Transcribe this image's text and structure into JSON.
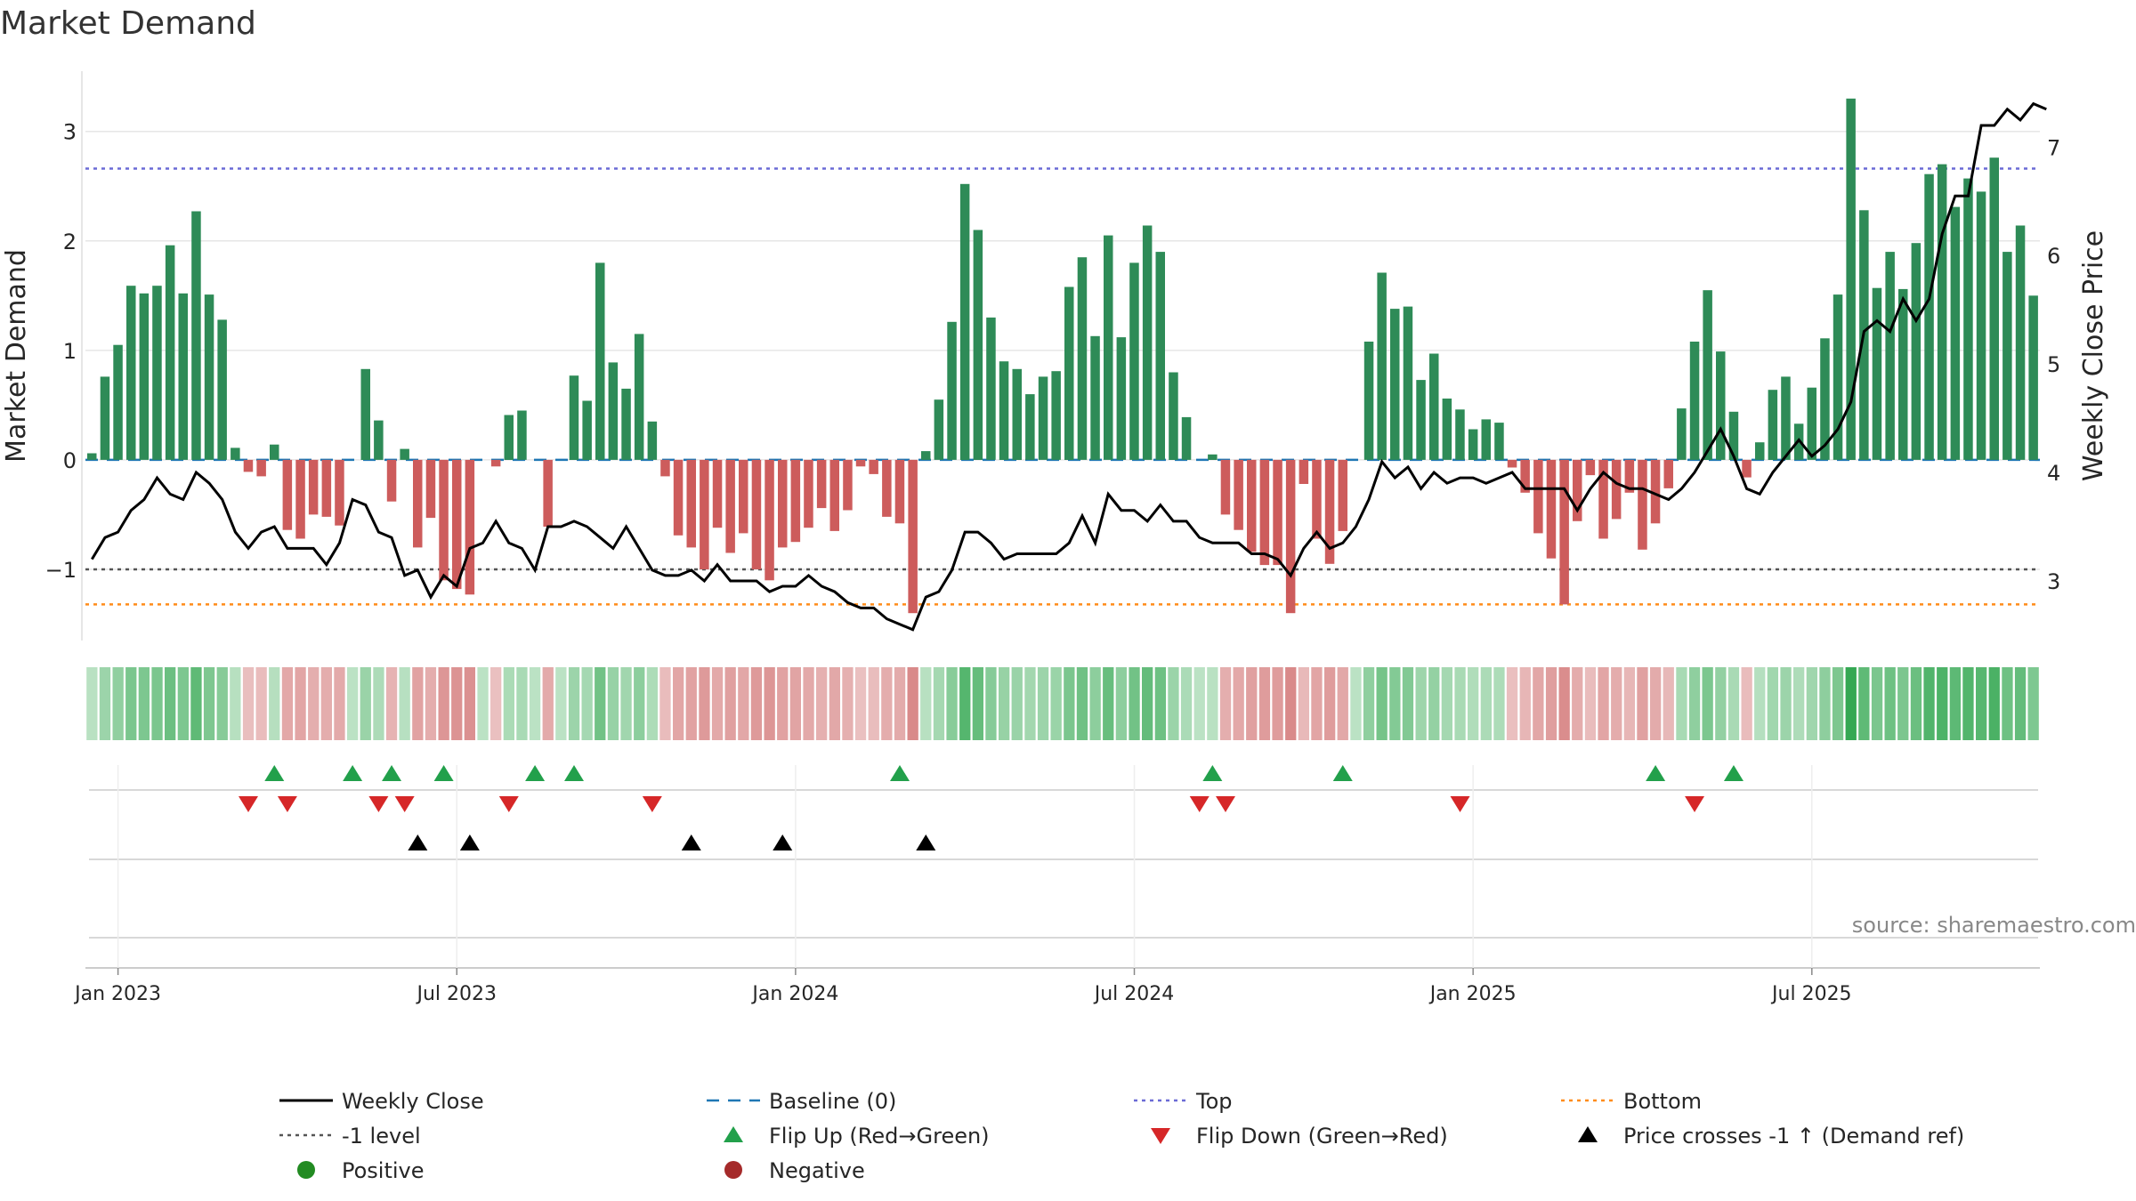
{
  "chart_data": {
    "type": "bar",
    "title": "Market Demand",
    "ylabel_left": "Market Demand",
    "ylabel_right": "Weekly Close Price",
    "source": "source: sharemaestro.com",
    "x_tick_labels": [
      "Jan 2023",
      "Jul 2023",
      "Jan 2024",
      "Jul 2024",
      "Jan 2025",
      "Jul 2025"
    ],
    "x_tick_weeks": [
      0,
      26,
      52,
      78,
      104,
      130
    ],
    "ylim_left": [
      -1.65,
      3.55
    ],
    "yticks_left": [
      {
        "v": -1,
        "label": "−1"
      },
      {
        "v": 0,
        "label": "0"
      },
      {
        "v": 1,
        "label": "1"
      },
      {
        "v": 2,
        "label": "2"
      },
      {
        "v": 3,
        "label": "3"
      }
    ],
    "ylim_right": [
      2.45,
      7.7
    ],
    "yticks_right": [
      {
        "v": 3,
        "label": "3"
      },
      {
        "v": 4,
        "label": "4"
      },
      {
        "v": 5,
        "label": "5"
      },
      {
        "v": 6,
        "label": "6"
      },
      {
        "v": 7,
        "label": "7"
      }
    ],
    "reference_lines": {
      "top": 2.66,
      "bottom": -1.32,
      "minus_one": -1,
      "baseline": 0
    },
    "first_week_offset": -2,
    "demand": [
      0.06,
      0.76,
      1.05,
      1.59,
      1.52,
      1.59,
      1.96,
      1.52,
      2.27,
      1.51,
      1.28,
      0.11,
      -0.11,
      -0.15,
      0.14,
      -0.64,
      -0.72,
      -0.5,
      -0.52,
      -0.6,
      0.0,
      0.83,
      0.36,
      -0.38,
      0.1,
      -0.8,
      -0.53,
      -1.1,
      -1.18,
      -1.23,
      0.0,
      -0.06,
      0.41,
      0.45,
      0.0,
      -0.61,
      0.0,
      0.77,
      0.54,
      1.8,
      0.89,
      0.65,
      1.15,
      0.35,
      -0.15,
      -0.69,
      -0.8,
      -1.0,
      -0.62,
      -0.85,
      -0.67,
      -1.0,
      -1.1,
      -0.8,
      -0.75,
      -0.62,
      -0.44,
      -0.65,
      -0.46,
      -0.06,
      -0.13,
      -0.52,
      -0.58,
      -1.4,
      0.08,
      0.55,
      1.26,
      2.52,
      2.1,
      1.3,
      0.9,
      0.83,
      0.6,
      0.76,
      0.81,
      1.58,
      1.85,
      1.13,
      2.05,
      1.12,
      1.8,
      2.14,
      1.9,
      0.8,
      0.39,
      0.0,
      0.05,
      -0.5,
      -0.64,
      -0.84,
      -0.96,
      -0.96,
      -1.4,
      -0.22,
      -0.72,
      -0.95,
      -0.65,
      0.0,
      1.08,
      1.71,
      1.38,
      1.4,
      0.73,
      0.97,
      0.56,
      0.46,
      0.28,
      0.37,
      0.34,
      -0.07,
      -0.3,
      -0.67,
      -0.9,
      -1.32,
      -0.56,
      -0.14,
      -0.72,
      -0.54,
      -0.3,
      -0.82,
      -0.58,
      -0.26,
      0.47,
      1.08,
      1.55,
      0.99,
      0.44,
      -0.16,
      0.16,
      0.64,
      0.76,
      0.33,
      0.66,
      1.11,
      1.51,
      3.3,
      2.28,
      1.57,
      1.9,
      1.56,
      1.98,
      2.61,
      2.7,
      2.31,
      2.57,
      2.45,
      2.76,
      1.9,
      2.14,
      1.5
    ],
    "price": [
      3.2,
      3.4,
      3.45,
      3.65,
      3.75,
      3.95,
      3.8,
      3.75,
      4.0,
      3.9,
      3.75,
      3.45,
      3.3,
      3.45,
      3.5,
      3.3,
      3.3,
      3.3,
      3.15,
      3.35,
      3.75,
      3.7,
      3.45,
      3.4,
      3.05,
      3.1,
      2.85,
      3.05,
      2.95,
      3.3,
      3.35,
      3.55,
      3.35,
      3.3,
      3.1,
      3.5,
      3.5,
      3.55,
      3.5,
      3.4,
      3.3,
      3.5,
      3.3,
      3.1,
      3.05,
      3.05,
      3.1,
      3.0,
      3.15,
      3.0,
      3.0,
      3.0,
      2.9,
      2.95,
      2.95,
      3.05,
      2.95,
      2.9,
      2.8,
      2.75,
      2.75,
      2.65,
      2.6,
      2.55,
      2.85,
      2.9,
      3.1,
      3.45,
      3.45,
      3.35,
      3.2,
      3.25,
      3.25,
      3.25,
      3.25,
      3.35,
      3.6,
      3.35,
      3.8,
      3.65,
      3.65,
      3.55,
      3.7,
      3.55,
      3.55,
      3.4,
      3.35,
      3.35,
      3.35,
      3.25,
      3.25,
      3.2,
      3.05,
      3.3,
      3.45,
      3.3,
      3.35,
      3.5,
      3.75,
      4.1,
      3.95,
      4.05,
      3.85,
      4.0,
      3.9,
      3.95,
      3.95,
      3.9,
      3.95,
      4.0,
      3.85,
      3.85,
      3.85,
      3.85,
      3.65,
      3.85,
      4.0,
      3.9,
      3.85,
      3.85,
      3.8,
      3.75,
      3.85,
      4.0,
      4.2,
      4.4,
      4.15,
      3.85,
      3.8,
      4.0,
      4.15,
      4.3,
      4.15,
      4.25,
      4.4,
      4.65,
      5.3,
      5.4,
      5.3,
      5.6,
      5.4,
      5.6,
      6.2,
      6.55,
      6.55,
      7.2,
      7.2,
      7.35,
      7.25,
      7.4,
      7.35
    ],
    "heatmap_scale_note": "Strip color intensity follows the demand sign and magnitude of each week",
    "flip_up_weeks": [
      12,
      18,
      21,
      25,
      32,
      35,
      60,
      84,
      94,
      118,
      124
    ],
    "flip_down_weeks": [
      10,
      13,
      20,
      22,
      30,
      41,
      83,
      85,
      103,
      121
    ],
    "price_cross_weeks": [
      23,
      27,
      44,
      51,
      62
    ],
    "legend": [
      {
        "key": "close",
        "label": "Weekly Close",
        "style": "line",
        "color": "#000000"
      },
      {
        "key": "baseline",
        "label": "Baseline (0)",
        "style": "dash",
        "color": "#1f77b4"
      },
      {
        "key": "top",
        "label": "Top",
        "style": "dot",
        "color": "#6b6bd6"
      },
      {
        "key": "bottom",
        "label": "Bottom",
        "style": "dot",
        "color": "#ff8c1a"
      },
      {
        "key": "minus1",
        "label": "-1 level",
        "style": "dot",
        "color": "#555555"
      },
      {
        "key": "flipup",
        "label": "Flip Up (Red→Green)",
        "style": "tri-up",
        "color": "#22a04b"
      },
      {
        "key": "flipdown",
        "label": "Flip Down (Green→Red)",
        "style": "tri-down",
        "color": "#d62728"
      },
      {
        "key": "pricecross",
        "label": "Price crosses -1 ↑ (Demand ref)",
        "style": "tri-up",
        "color": "#000000"
      },
      {
        "key": "positive",
        "label": "Positive",
        "style": "circle",
        "color": "#228b22"
      },
      {
        "key": "negative",
        "label": "Negative",
        "style": "circle",
        "color": "#a52a2a"
      }
    ],
    "colors": {
      "positive_bar": "#2e8b57",
      "negative_bar": "#cd5c5c",
      "price_line": "#000000",
      "baseline": "#1f77b4",
      "top": "#6b6bd6",
      "bottom": "#ff8c1a",
      "minus_one": "#555555",
      "grid": "#e6e6e6",
      "axis_text": "#262626",
      "source_text": "#888888"
    }
  }
}
